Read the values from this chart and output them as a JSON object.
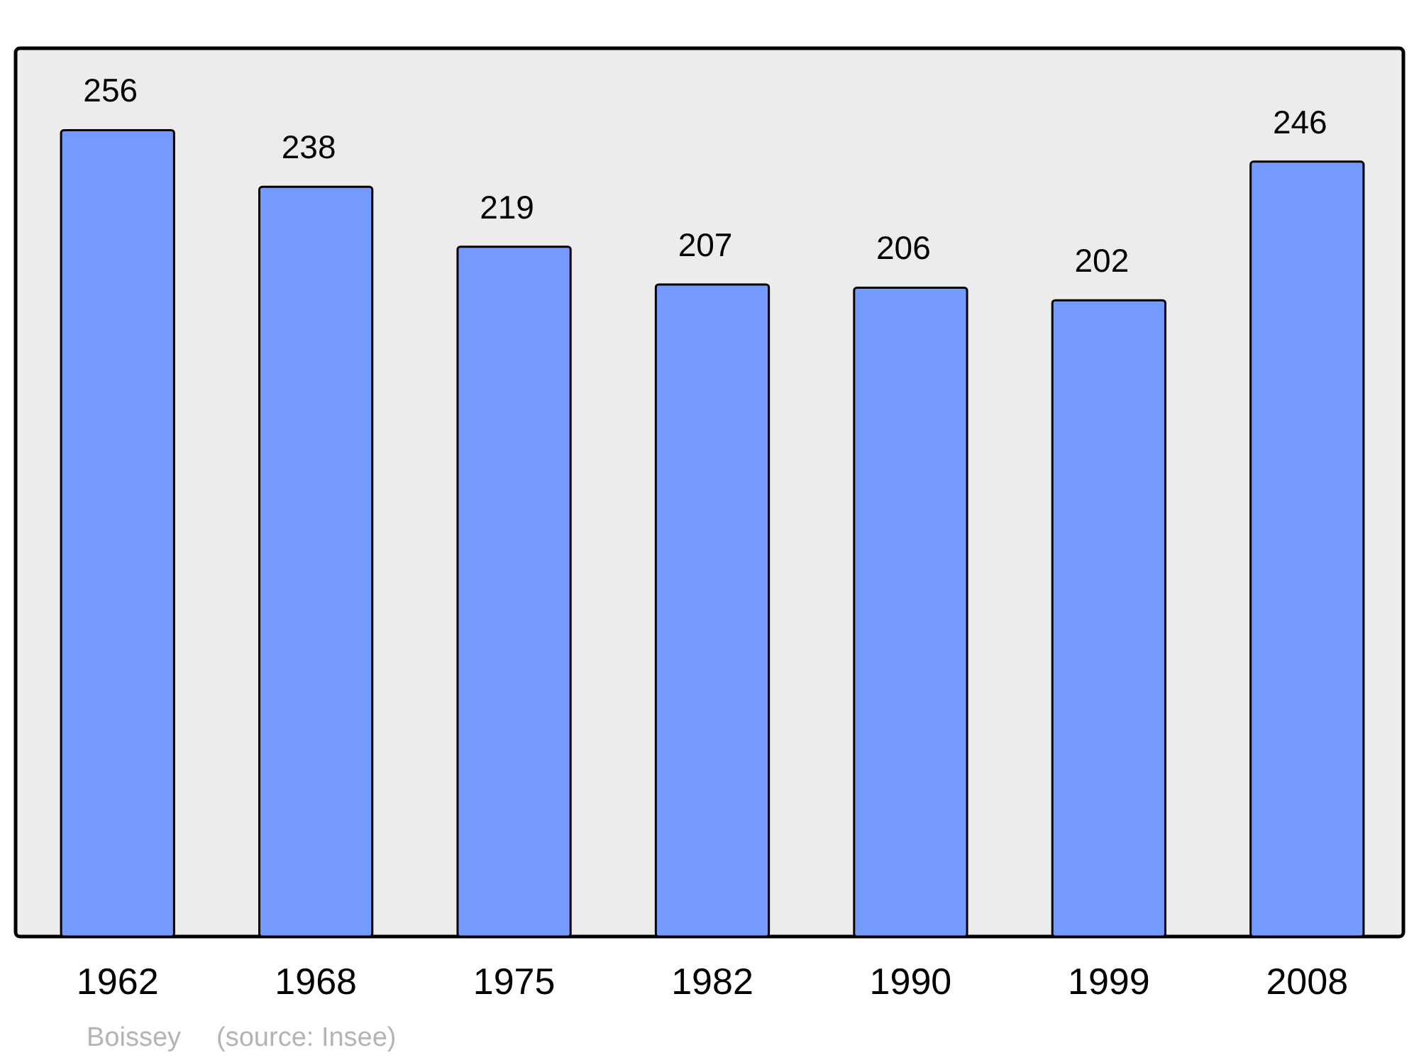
{
  "chart_data": {
    "type": "bar",
    "categories": [
      "1962",
      "1968",
      "1975",
      "1982",
      "1990",
      "1999",
      "2008"
    ],
    "values": [
      256,
      238,
      219,
      207,
      206,
      202,
      246
    ],
    "color": "#7499ff",
    "ylim": [
      0,
      282
    ],
    "data_labels": true,
    "annotations": [
      "Boissey",
      "(source: Insee)"
    ]
  }
}
